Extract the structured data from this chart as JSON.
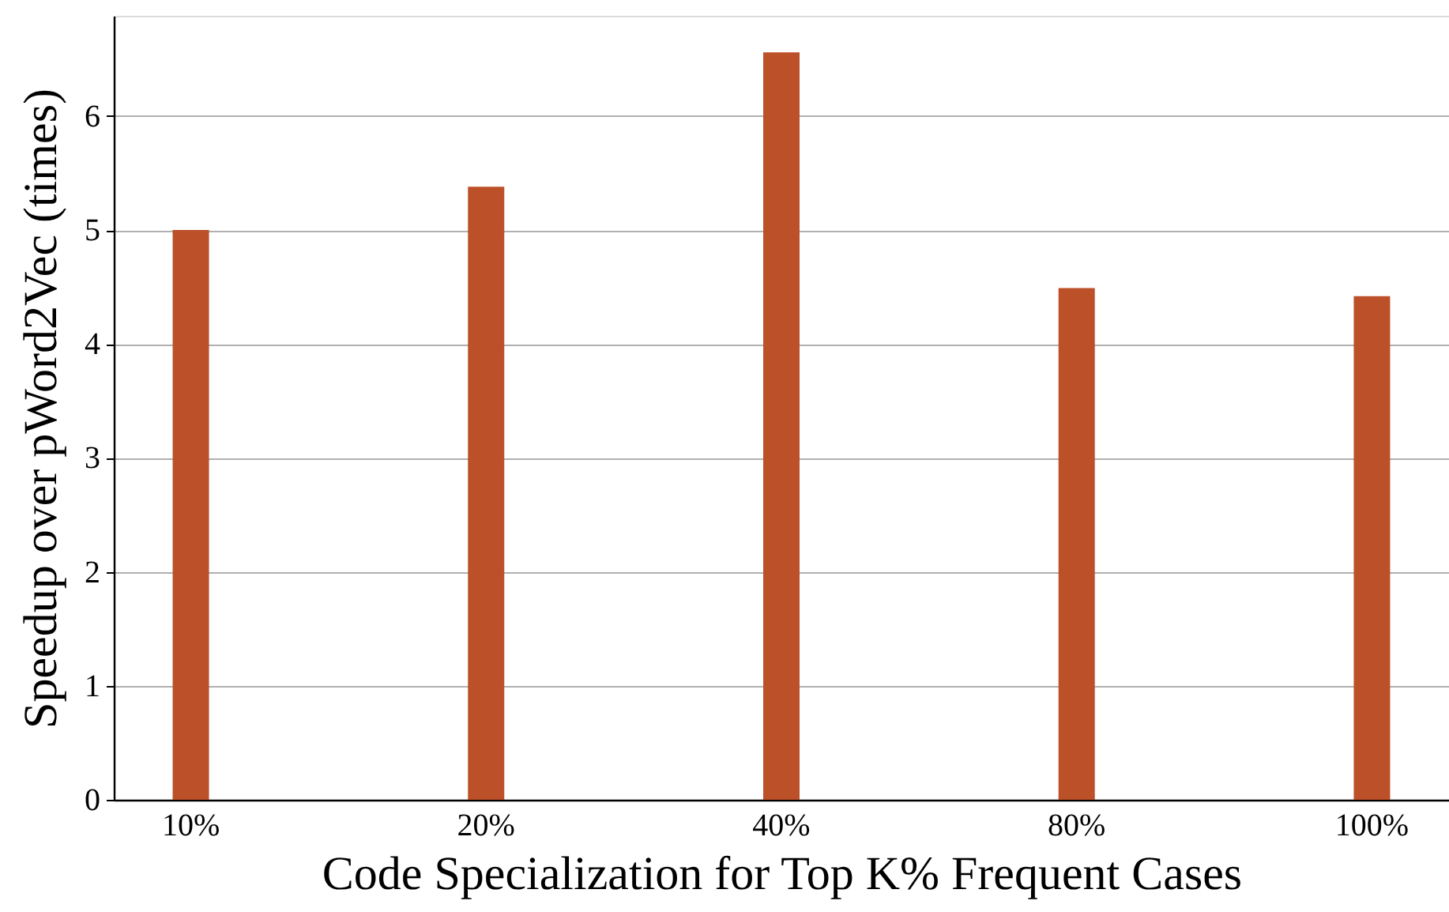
{
  "chart_data": {
    "type": "bar",
    "xlabel": "Code Specialization for Top K% Frequent Cases",
    "ylabel": "Speedup over pWord2Vec (times)",
    "categories": [
      "10%",
      "20%",
      "40%",
      "80%",
      "100%"
    ],
    "values": [
      5.0,
      5.38,
      6.56,
      4.49,
      4.42
    ],
    "color": "#bc5028",
    "ylim": [
      0,
      6.88
    ],
    "yticks": [
      0,
      1,
      2,
      3,
      4,
      5,
      6
    ],
    "grid": "y"
  }
}
